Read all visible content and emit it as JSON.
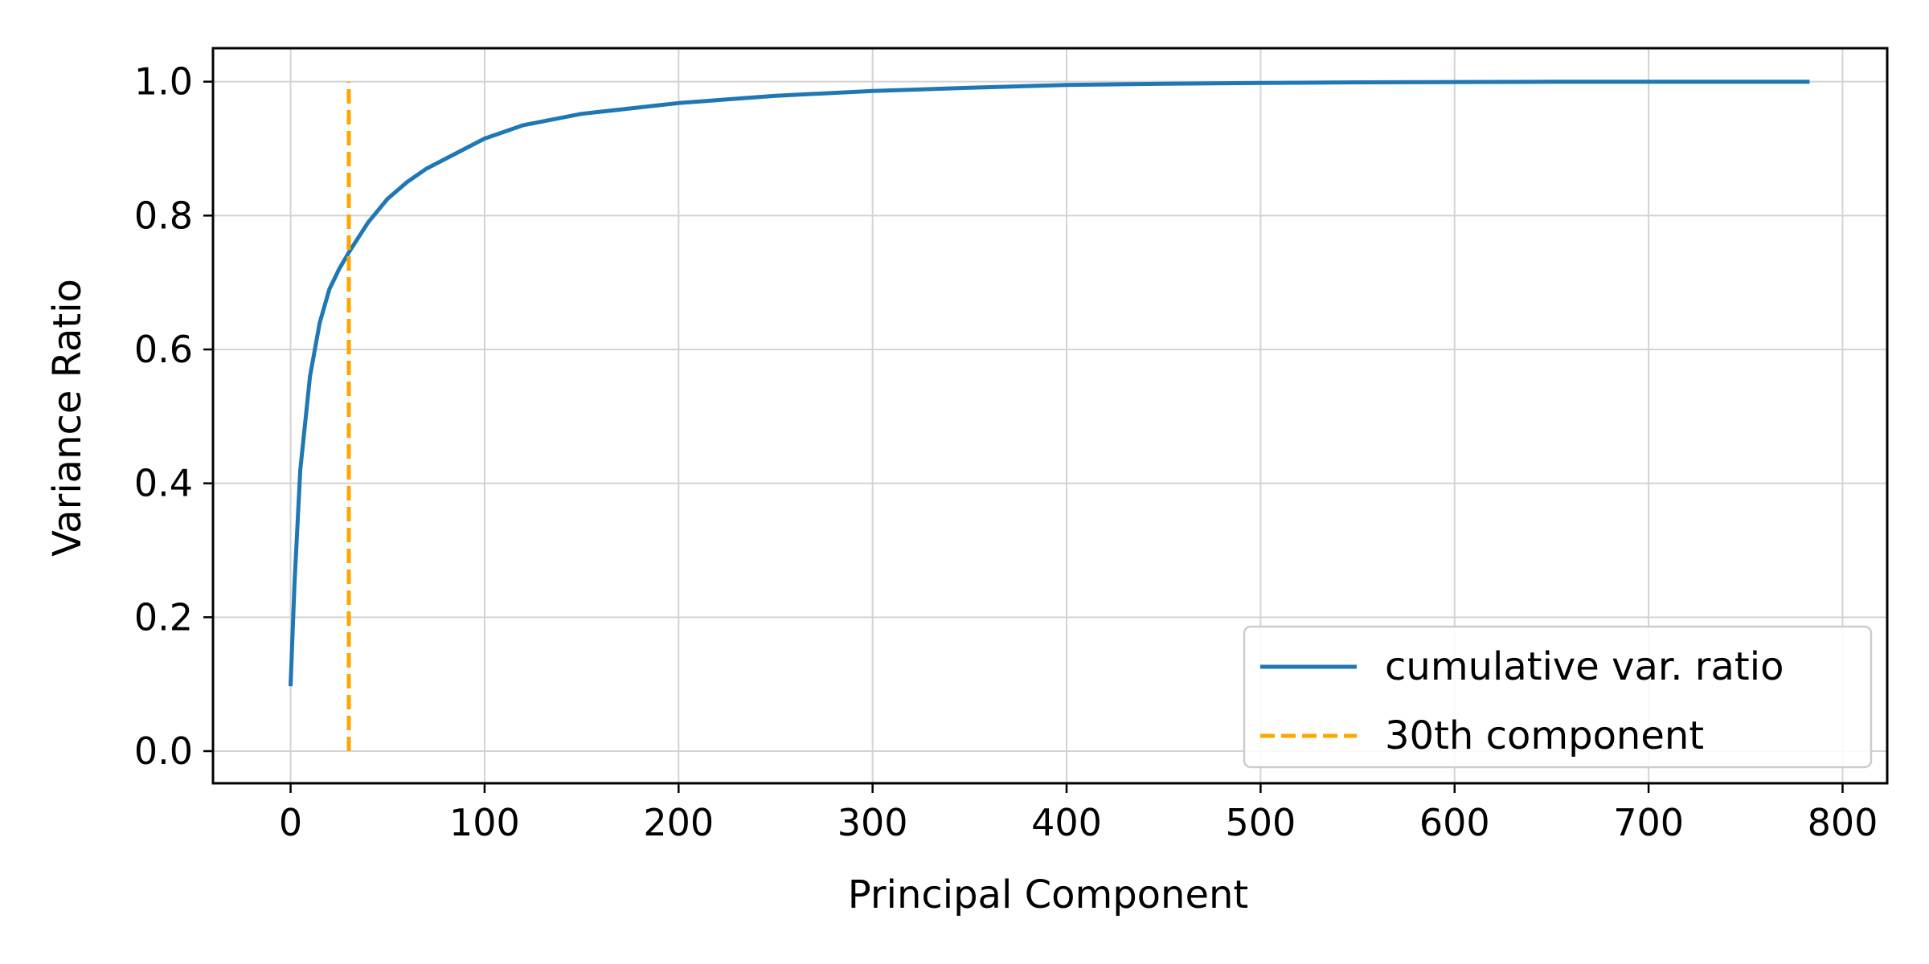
{
  "chart_data": {
    "type": "line",
    "title": "",
    "xlabel": "Principal Component",
    "ylabel": "Variance Ratio",
    "xlim": [
      -40,
      823
    ],
    "ylim": [
      -0.048,
      1.05
    ],
    "xticks": [
      0,
      100,
      200,
      300,
      400,
      500,
      600,
      700,
      800
    ],
    "xtick_labels": [
      "0",
      "100",
      "200",
      "300",
      "400",
      "500",
      "600",
      "700",
      "800"
    ],
    "yticks": [
      0.0,
      0.2,
      0.4,
      0.6,
      0.8,
      1.0
    ],
    "ytick_labels": [
      "0.0",
      "0.2",
      "0.4",
      "0.6",
      "0.8",
      "1.0"
    ],
    "grid": true,
    "legend_position": "lower-right",
    "series": [
      {
        "name": "cumulative var. ratio",
        "kind": "line",
        "color": "#1f77b4",
        "style": "solid",
        "x": [
          0,
          2,
          5,
          10,
          15,
          20,
          25,
          30,
          40,
          50,
          60,
          70,
          80,
          100,
          120,
          150,
          200,
          250,
          300,
          350,
          400,
          450,
          500,
          550,
          600,
          650,
          700,
          750,
          783
        ],
        "y": [
          0.097,
          0.25,
          0.42,
          0.56,
          0.64,
          0.69,
          0.72,
          0.745,
          0.79,
          0.825,
          0.85,
          0.87,
          0.885,
          0.915,
          0.935,
          0.952,
          0.968,
          0.979,
          0.986,
          0.991,
          0.995,
          0.997,
          0.998,
          0.999,
          0.9995,
          0.9998,
          0.9999,
          1.0,
          1.0
        ]
      },
      {
        "name": "30th component",
        "kind": "vline",
        "color": "#ffa500",
        "style": "dashed",
        "x": [
          30,
          30
        ],
        "y": [
          0.0,
          1.0
        ]
      }
    ]
  }
}
